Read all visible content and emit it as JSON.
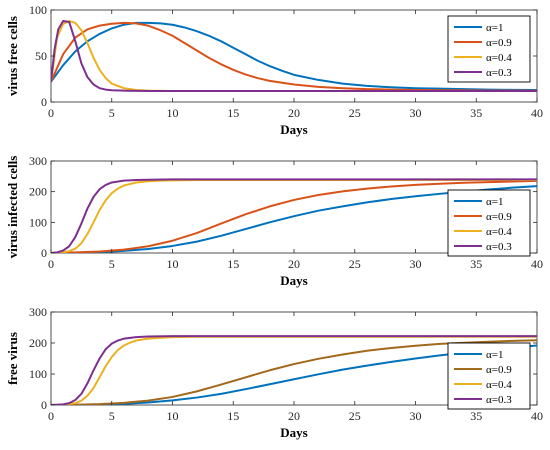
{
  "chart_data": [
    {
      "type": "line",
      "xlabel": "Days",
      "ylabel": "virus free cells",
      "xlim": [
        0,
        40
      ],
      "ylim": [
        0,
        100
      ],
      "xticks": [
        "0",
        "5",
        "10",
        "15",
        "20",
        "25",
        "30",
        "35",
        "40"
      ],
      "yticks": [
        "0",
        "50",
        "100"
      ],
      "legend_position": "top-right",
      "series": [
        {
          "name": "α=1",
          "color": "#0072BD",
          "x": [
            0,
            1,
            2,
            3,
            4,
            5,
            6,
            7,
            8,
            9,
            10,
            11,
            12,
            13,
            14,
            15,
            16,
            17,
            18,
            19,
            20,
            22,
            24,
            26,
            28,
            30,
            32,
            34,
            36,
            38,
            40
          ],
          "y": [
            22,
            40,
            55,
            66,
            74,
            80,
            84,
            86,
            86,
            85.5,
            84,
            81,
            77,
            72,
            66,
            59,
            52,
            45,
            39,
            34,
            29.5,
            24,
            20,
            17.5,
            16,
            15,
            14.5,
            14,
            13.5,
            13.2,
            13
          ]
        },
        {
          "name": "α=0.9",
          "color": "#D95319",
          "x": [
            0,
            1,
            2,
            3,
            4,
            5,
            6,
            7,
            8,
            9,
            10,
            11,
            12,
            13,
            14,
            15,
            16,
            17,
            18,
            20,
            22,
            24,
            26,
            28,
            30,
            32,
            34,
            36,
            38,
            40
          ],
          "y": [
            22,
            52,
            70,
            79,
            83,
            85,
            86,
            85.5,
            83,
            78,
            72,
            64,
            56,
            48,
            41,
            35,
            30,
            26,
            23,
            19,
            16.5,
            15,
            14,
            13.5,
            13,
            12.8,
            12.6,
            12.4,
            12.3,
            12.2
          ]
        },
        {
          "name": "α=0.4",
          "color": "#EDB120",
          "x": [
            0,
            0.5,
            1,
            1.5,
            2,
            2.5,
            3,
            3.5,
            4,
            4.5,
            5,
            6,
            7,
            8,
            10,
            12,
            15,
            20,
            25,
            30,
            35,
            40
          ],
          "y": [
            22,
            70,
            85,
            88,
            86,
            78,
            64,
            48,
            35,
            26,
            20,
            15,
            13,
            12.3,
            12,
            12,
            12,
            12,
            12,
            12,
            12,
            12
          ]
        },
        {
          "name": "α=0.3",
          "color": "#7E2F8E",
          "x": [
            0,
            0.3,
            0.6,
            1,
            1.5,
            2,
            2.5,
            3,
            3.5,
            4,
            4.5,
            5,
            6,
            8,
            10,
            15,
            20,
            25,
            30,
            35,
            40
          ],
          "y": [
            22,
            58,
            79,
            88,
            87,
            66,
            42,
            27,
            19,
            15,
            13.5,
            12.8,
            12.3,
            12,
            12,
            12,
            12,
            12,
            12,
            12,
            12
          ]
        }
      ],
      "legend": [
        "α=1",
        "α=0.9",
        "α=0.4",
        "α=0.3"
      ]
    },
    {
      "type": "line",
      "xlabel": "Days",
      "ylabel": "virus infected cells",
      "xlim": [
        0,
        40
      ],
      "ylim": [
        0,
        300
      ],
      "xticks": [
        "0",
        "5",
        "10",
        "15",
        "20",
        "25",
        "30",
        "35",
        "40"
      ],
      "yticks": [
        "0",
        "100",
        "200",
        "300"
      ],
      "legend_position": "bottom-right",
      "series": [
        {
          "name": "α=1",
          "color": "#0072BD",
          "x": [
            0,
            2,
            4,
            6,
            8,
            10,
            12,
            14,
            16,
            18,
            20,
            22,
            24,
            26,
            28,
            30,
            32,
            34,
            36,
            38,
            40
          ],
          "y": [
            0,
            1,
            3,
            7,
            13,
            23,
            37,
            56,
            78,
            100,
            120,
            138,
            152,
            165,
            176,
            185,
            193,
            200,
            207,
            213,
            218
          ]
        },
        {
          "name": "α=0.9",
          "color": "#D95319",
          "x": [
            0,
            2,
            4,
            6,
            8,
            10,
            12,
            14,
            16,
            18,
            20,
            22,
            24,
            26,
            28,
            30,
            32,
            34,
            36,
            38,
            40
          ],
          "y": [
            0,
            2,
            5,
            11,
            22,
            40,
            65,
            96,
            126,
            152,
            173,
            189,
            201,
            210,
            217,
            222,
            226,
            229,
            231,
            233,
            235
          ]
        },
        {
          "name": "α=0.4",
          "color": "#EDB120",
          "x": [
            0,
            1,
            1.5,
            2,
            2.5,
            3,
            3.5,
            4,
            4.5,
            5,
            5.5,
            6,
            7,
            8,
            9,
            10,
            12,
            15,
            20,
            25,
            30,
            35,
            40
          ],
          "y": [
            0,
            2,
            6,
            14,
            32,
            62,
            100,
            140,
            172,
            195,
            210,
            220,
            230,
            234,
            236,
            237,
            238,
            238,
            238,
            238,
            238,
            238,
            238
          ]
        },
        {
          "name": "α=0.3",
          "color": "#7E2F8E",
          "x": [
            0,
            0.5,
            1,
            1.5,
            2,
            2.5,
            3,
            3.5,
            4,
            4.5,
            5,
            6,
            7,
            8,
            10,
            12,
            15,
            20,
            25,
            30,
            35,
            40
          ],
          "y": [
            0,
            2,
            8,
            22,
            52,
            96,
            145,
            183,
            208,
            222,
            230,
            236,
            238,
            239,
            240,
            240,
            240,
            240,
            240,
            240,
            240,
            240
          ]
        }
      ],
      "legend": [
        "α=1",
        "α=0.9",
        "α=0.4",
        "α=0.3"
      ]
    },
    {
      "type": "line",
      "xlabel": "Days",
      "ylabel": "free virus",
      "xlim": [
        0,
        40
      ],
      "ylim": [
        0,
        300
      ],
      "xticks": [
        "0",
        "5",
        "10",
        "15",
        "20",
        "25",
        "30",
        "35",
        "40"
      ],
      "yticks": [
        "0",
        "100",
        "200",
        "300"
      ],
      "legend_position": "bottom-right",
      "series": [
        {
          "name": "α=1",
          "color": "#0072BD",
          "x": [
            0,
            2,
            4,
            6,
            8,
            10,
            12,
            14,
            16,
            18,
            20,
            22,
            24,
            26,
            28,
            30,
            32,
            34,
            36,
            38,
            40
          ],
          "y": [
            0,
            0.5,
            1.5,
            4,
            8,
            15,
            24,
            36,
            51,
            67,
            83,
            99,
            114,
            127,
            139,
            150,
            160,
            169,
            177,
            185,
            192
          ]
        },
        {
          "name": "α=0.9",
          "color": "#A2681C",
          "x": [
            0,
            2,
            4,
            6,
            8,
            10,
            12,
            14,
            16,
            18,
            20,
            22,
            24,
            26,
            28,
            30,
            32,
            34,
            36,
            38,
            40
          ],
          "y": [
            0,
            1,
            3,
            7,
            14,
            26,
            44,
            66,
            89,
            112,
            132,
            149,
            163,
            175,
            184,
            191,
            197,
            201,
            204,
            207,
            209
          ]
        },
        {
          "name": "α=0.4",
          "color": "#EDB120",
          "x": [
            0,
            1,
            2,
            2.5,
            3,
            3.5,
            4,
            4.5,
            5,
            5.5,
            6,
            6.5,
            7,
            8,
            9,
            10,
            12,
            15,
            20,
            25,
            30,
            35,
            40
          ],
          "y": [
            0,
            1,
            6,
            14,
            30,
            55,
            90,
            125,
            155,
            177,
            192,
            201,
            208,
            214,
            217,
            219,
            220,
            220,
            220,
            220,
            220,
            220,
            220
          ]
        },
        {
          "name": "α=0.3",
          "color": "#7E2F8E",
          "x": [
            0,
            1,
            1.5,
            2,
            2.5,
            3,
            3.5,
            4,
            4.5,
            5,
            5.5,
            6,
            7,
            8,
            10,
            12,
            15,
            20,
            25,
            30,
            35,
            40
          ],
          "y": [
            0,
            2,
            6,
            16,
            36,
            70,
            112,
            150,
            180,
            198,
            208,
            214,
            219,
            221,
            222,
            222,
            222,
            222,
            222,
            222,
            222,
            222
          ]
        }
      ],
      "legend": [
        "α=1",
        "α=0.9",
        "α=0.4",
        "α=0.3"
      ]
    }
  ]
}
